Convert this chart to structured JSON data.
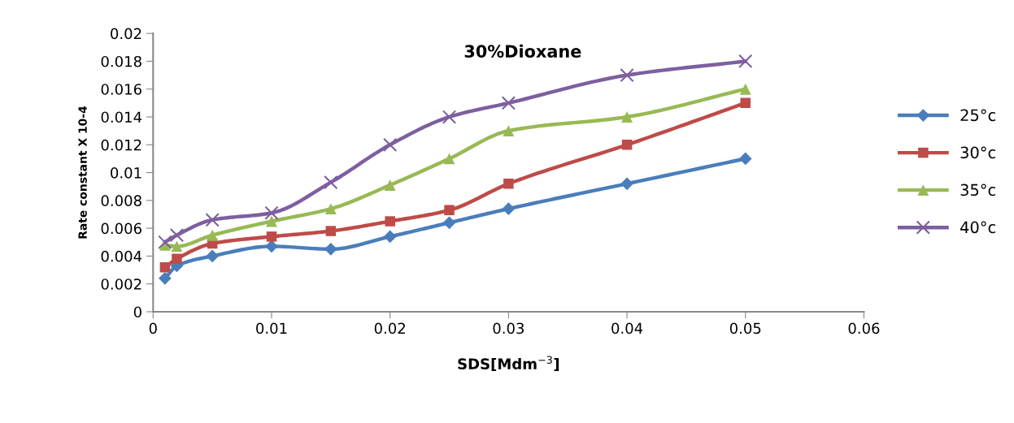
{
  "chart_data": {
    "type": "line",
    "title": "30%Dioxane",
    "xlabel": "SDS[Mdm$^{−3}$]",
    "ylabel": "Rate constant X 10-4",
    "x": [
      0.001,
      0.002,
      0.005,
      0.01,
      0.015,
      0.02,
      0.025,
      0.03,
      0.04,
      0.05
    ],
    "series": [
      {
        "name": "25°c",
        "color": "#4a7ebb",
        "marker": "diamond",
        "values": [
          0.0024,
          0.0033,
          0.004,
          0.0047,
          0.0045,
          0.0054,
          0.0064,
          0.0074,
          0.0092,
          0.011
        ]
      },
      {
        "name": "30°c",
        "color": "#be4b48",
        "marker": "square",
        "values": [
          0.0032,
          0.0038,
          0.0049,
          0.0054,
          0.0058,
          0.0065,
          0.0073,
          0.0092,
          0.012,
          0.015
        ]
      },
      {
        "name": "35°c",
        "color": "#98b954",
        "marker": "triangle",
        "values": [
          0.0048,
          0.0047,
          0.0055,
          0.0065,
          0.0074,
          0.0091,
          0.011,
          0.013,
          0.014,
          0.016
        ]
      },
      {
        "name": "40°c",
        "color": "#7d5fa0",
        "marker": "cross",
        "values": [
          0.005,
          0.0055,
          0.0066,
          0.0071,
          0.0093,
          0.012,
          0.014,
          0.015,
          0.017,
          0.018
        ]
      }
    ],
    "xlim": [
      0,
      0.06
    ],
    "xticks": [
      0,
      0.01,
      0.02,
      0.03,
      0.04,
      0.05,
      0.06
    ],
    "ylim": [
      0,
      0.02
    ],
    "yticks": [
      0,
      0.002,
      0.004,
      0.006,
      0.008,
      0.01,
      0.012,
      0.014,
      0.016,
      0.018,
      0.02
    ],
    "grid": false,
    "legend": "right",
    "line_style": "solid"
  }
}
